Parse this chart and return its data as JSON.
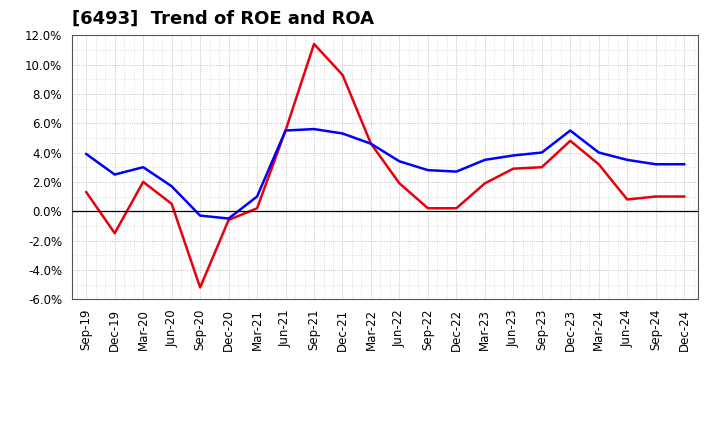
{
  "title": "[6493]  Trend of ROE and ROA",
  "labels": [
    "Sep-19",
    "Dec-19",
    "Mar-20",
    "Jun-20",
    "Sep-20",
    "Dec-20",
    "Mar-21",
    "Jun-21",
    "Sep-21",
    "Dec-21",
    "Mar-22",
    "Jun-22",
    "Sep-22",
    "Dec-22",
    "Mar-23",
    "Jun-23",
    "Sep-23",
    "Dec-23",
    "Mar-24",
    "Jun-24",
    "Sep-24",
    "Dec-24"
  ],
  "ROE": [
    1.3,
    -1.5,
    2.0,
    0.5,
    -5.2,
    -0.6,
    0.2,
    5.5,
    11.4,
    9.3,
    4.6,
    1.9,
    0.2,
    0.2,
    1.9,
    2.9,
    3.0,
    4.8,
    3.2,
    0.8,
    1.0,
    1.0
  ],
  "ROA": [
    3.9,
    2.5,
    3.0,
    1.7,
    -0.3,
    -0.5,
    1.0,
    5.5,
    5.6,
    5.3,
    4.6,
    3.4,
    2.8,
    2.7,
    3.5,
    3.8,
    4.0,
    5.5,
    4.0,
    3.5,
    3.2,
    3.2
  ],
  "ROE_color": "#e8000d",
  "ROA_color": "#0000ff",
  "background_color": "#ffffff",
  "grid_color": "#999999",
  "ylim": [
    -6.0,
    12.0
  ],
  "yticks": [
    -6.0,
    -4.0,
    -2.0,
    0.0,
    2.0,
    4.0,
    6.0,
    8.0,
    10.0,
    12.0
  ],
  "title_fontsize": 13,
  "tick_fontsize": 8.5,
  "legend_fontsize": 10
}
